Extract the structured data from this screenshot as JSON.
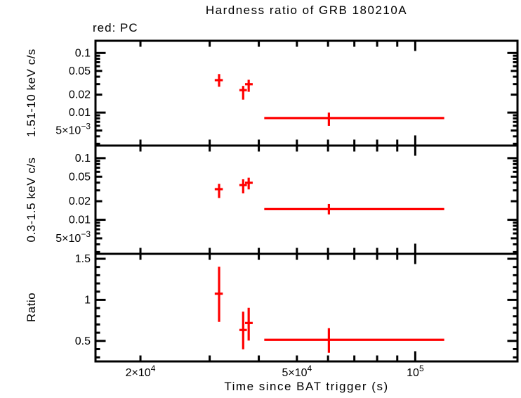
{
  "figure": {
    "title": "Hardness ratio of GRB 180210A",
    "legend_note": "red: PC",
    "mode_color": "#ff0000",
    "axis_color": "#000000",
    "background_color": "#ffffff"
  },
  "xaxis": {
    "label": "Time since BAT trigger (s)",
    "scale": "log",
    "lim": [
      15370,
      182000
    ],
    "tick_values": [
      20000,
      30000,
      40000,
      50000,
      60000,
      70000,
      80000,
      90000,
      100000
    ],
    "major_values": [
      100000
    ],
    "tick_labels": [
      {
        "value": 20000,
        "base": "2×10",
        "sup": "4"
      },
      {
        "value": 50000,
        "base": "5×10",
        "sup": "4"
      },
      {
        "value": 100000,
        "base": "10",
        "sup": "5"
      }
    ]
  },
  "chart_data": [
    {
      "type": "scatter",
      "ylabel": "1.51-10 keV c/s",
      "yscale": "log",
      "ylim": [
        0.0028,
        0.16
      ],
      "yticks": {
        "values": [
          0.003,
          0.004,
          0.005,
          0.006,
          0.007,
          0.008,
          0.009,
          0.01,
          0.02,
          0.03,
          0.04,
          0.05,
          0.06,
          0.07,
          0.08,
          0.09,
          0.1
        ],
        "majors": [
          0.01,
          0.1
        ],
        "labels": [
          {
            "value": 0.1,
            "base": "0.1"
          },
          {
            "value": 0.05,
            "base": "0.05"
          },
          {
            "value": 0.02,
            "base": "0.02"
          },
          {
            "value": 0.01,
            "base": "0.01"
          },
          {
            "value": 0.005,
            "base": "5×10",
            "sup": "−3"
          }
        ]
      },
      "series": [
        {
          "name": "PC",
          "color": "#ff0000",
          "points": [
            {
              "t": 31700,
              "t_lo": 30900,
              "t_hi": 32400,
              "v": 0.035,
              "v_lo": 0.0271,
              "v_hi": 0.0443
            },
            {
              "t": 36500,
              "t_lo": 35700,
              "t_hi": 37300,
              "v": 0.0238,
              "v_lo": 0.0165,
              "v_hi": 0.028
            },
            {
              "t": 37700,
              "t_lo": 36900,
              "t_hi": 38600,
              "v": 0.0299,
              "v_lo": 0.0223,
              "v_hi": 0.0355
            },
            {
              "t": 60300,
              "t_lo": 41300,
              "t_hi": 118500,
              "v": 0.0081,
              "v_lo": 0.006,
              "v_hi": 0.01
            }
          ]
        }
      ]
    },
    {
      "type": "scatter",
      "ylabel": "0.3-1.5 keV c/s",
      "yscale": "log",
      "ylim": [
        0.0028,
        0.16
      ],
      "yticks": {
        "values": [
          0.003,
          0.004,
          0.005,
          0.006,
          0.007,
          0.008,
          0.009,
          0.01,
          0.02,
          0.03,
          0.04,
          0.05,
          0.06,
          0.07,
          0.08,
          0.09,
          0.1
        ],
        "majors": [
          0.01,
          0.1
        ],
        "labels": [
          {
            "value": 0.1,
            "base": "0.1"
          },
          {
            "value": 0.05,
            "base": "0.05"
          },
          {
            "value": 0.02,
            "base": "0.02"
          },
          {
            "value": 0.01,
            "base": "0.01"
          },
          {
            "value": 0.005,
            "base": "5×10",
            "sup": "−3"
          }
        ]
      },
      "series": [
        {
          "name": "PC",
          "color": "#ff0000",
          "points": [
            {
              "t": 31700,
              "t_lo": 30900,
              "t_hi": 32400,
              "v": 0.0314,
              "v_lo": 0.0225,
              "v_hi": 0.0382
            },
            {
              "t": 36500,
              "t_lo": 35700,
              "t_hi": 37300,
              "v": 0.0365,
              "v_lo": 0.0268,
              "v_hi": 0.0454
            },
            {
              "t": 37700,
              "t_lo": 36900,
              "t_hi": 38600,
              "v": 0.0398,
              "v_lo": 0.0311,
              "v_hi": 0.0482
            },
            {
              "t": 60300,
              "t_lo": 41300,
              "t_hi": 118500,
              "v": 0.0149,
              "v_lo": 0.0122,
              "v_hi": 0.0181
            }
          ]
        }
      ]
    },
    {
      "type": "scatter",
      "ylabel": "Ratio",
      "yscale": "linear",
      "ylim": [
        0.25,
        1.56
      ],
      "yticks": {
        "values": [
          0.3,
          0.4,
          0.5,
          0.6,
          0.7,
          0.8,
          0.9,
          1.0,
          1.1,
          1.2,
          1.3,
          1.4,
          1.5
        ],
        "majors": [
          0.5,
          1.0,
          1.5
        ],
        "labels": [
          {
            "value": 1.5,
            "base": "1.5"
          },
          {
            "value": 1.0,
            "base": "1"
          },
          {
            "value": 0.5,
            "base": "0.5"
          }
        ]
      },
      "series": [
        {
          "name": "PC",
          "color": "#ff0000",
          "points": [
            {
              "t": 31700,
              "t_lo": 30900,
              "t_hi": 32400,
              "v": 1.075,
              "v_lo": 0.732,
              "v_hi": 1.403
            },
            {
              "t": 36500,
              "t_lo": 35700,
              "t_hi": 37300,
              "v": 0.633,
              "v_lo": 0.398,
              "v_hi": 0.856
            },
            {
              "t": 37700,
              "t_lo": 36900,
              "t_hi": 38600,
              "v": 0.718,
              "v_lo": 0.504,
              "v_hi": 0.903
            },
            {
              "t": 60300,
              "t_lo": 41300,
              "t_hi": 118500,
              "v": 0.513,
              "v_lo": 0.355,
              "v_hi": 0.655
            }
          ]
        }
      ]
    }
  ]
}
